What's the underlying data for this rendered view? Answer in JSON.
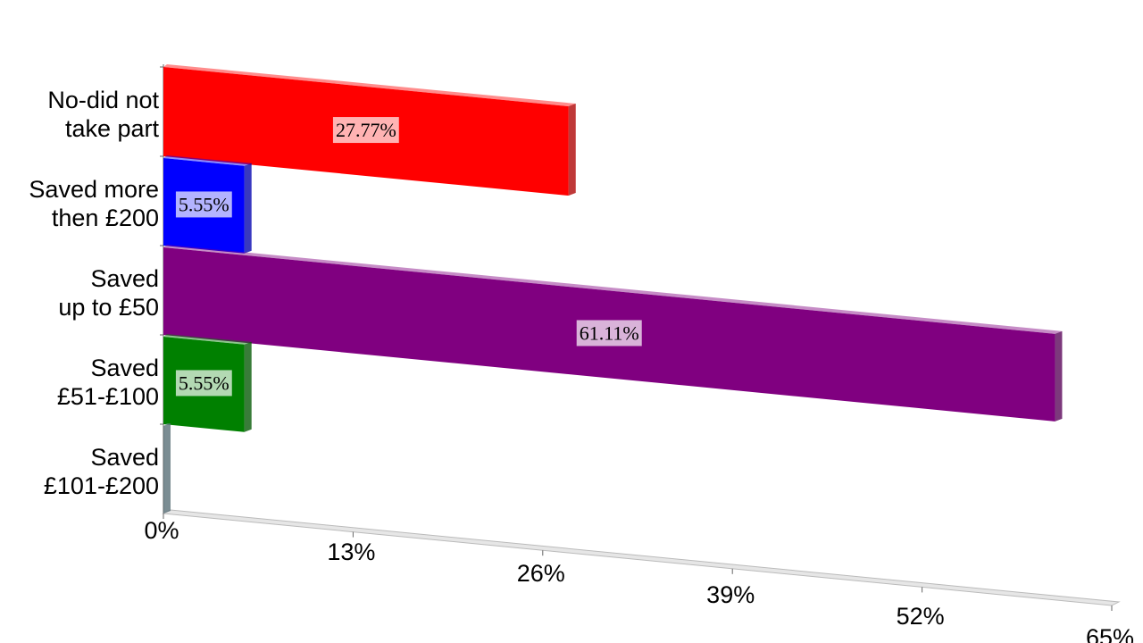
{
  "chart_data": {
    "type": "bar",
    "orientation": "horizontal",
    "categories": [
      "No-did not\ntake part",
      "Saved more\nthen £200",
      "Saved\nup to £50",
      "Saved\n£51-£100",
      "Saved\n£101-£200"
    ],
    "values": [
      27.77,
      5.55,
      61.11,
      5.55,
      0
    ],
    "value_labels": [
      "27.77%",
      "5.55%",
      "61.11%",
      "5.55%",
      null
    ],
    "colors": [
      "#ff0000",
      "#0000ff",
      "#800080",
      "#008000",
      "#7f9fad"
    ],
    "xlim": [
      0,
      65
    ],
    "xticks": [
      {
        "value": 0,
        "label": "0%"
      },
      {
        "value": 13,
        "label": "13%"
      },
      {
        "value": 26,
        "label": "26%"
      },
      {
        "value": 39,
        "label": "39%"
      },
      {
        "value": 52,
        "label": "52%"
      },
      {
        "value": 65,
        "label": "65%"
      }
    ]
  }
}
